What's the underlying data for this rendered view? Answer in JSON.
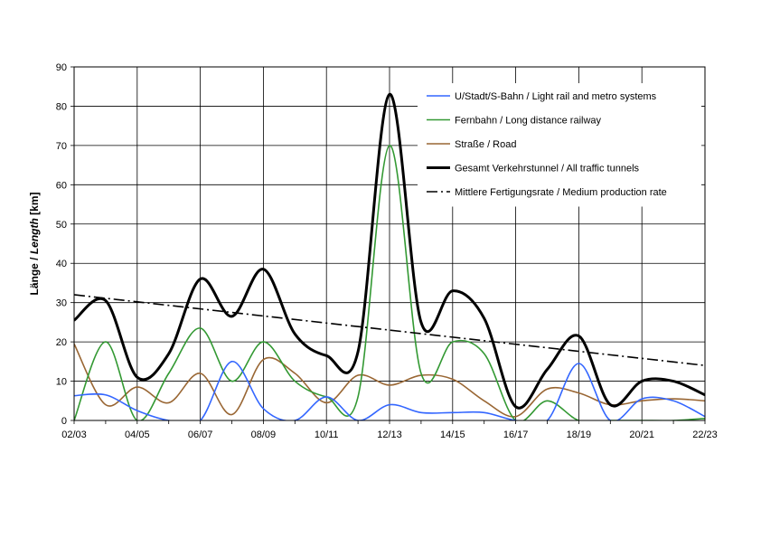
{
  "chart_data": {
    "type": "line",
    "ylabel": "Länge / Length [km]",
    "ylabel_parts": [
      "Länge / ",
      "Length",
      " [km]"
    ],
    "xlabel": "",
    "ylim": [
      0,
      90
    ],
    "y_ticks": [
      0,
      10,
      20,
      30,
      40,
      50,
      60,
      70,
      80,
      90
    ],
    "x": [
      "02/03",
      "03/04",
      "04/05",
      "05/06",
      "06/07",
      "07/08",
      "08/09",
      "09/10",
      "10/11",
      "11/12",
      "12/13",
      "13/14",
      "14/15",
      "15/16",
      "16/17",
      "17/18",
      "18/19",
      "19/20",
      "20/21",
      "21/22",
      "22/23"
    ],
    "x_tick_labels": [
      "02/03",
      "04/05",
      "06/07",
      "08/09",
      "10/11",
      "12/13",
      "14/15",
      "16/17",
      "18/19",
      "20/21",
      "22/23"
    ],
    "grid": true,
    "legend_position": "top-right",
    "series": [
      {
        "name": "U/Stadt/S-Bahn / Light rail and metro systems",
        "color": "#3366ff",
        "width": 1.6,
        "dash": "",
        "values": [
          6.3,
          6.5,
          2.5,
          0,
          0,
          15,
          3,
          0,
          6,
          0,
          4,
          2,
          2,
          2,
          0,
          0,
          14.5,
          0,
          5.5,
          5,
          1
        ]
      },
      {
        "name": "Fernbahn / Long distance railway",
        "color": "#339933",
        "width": 1.6,
        "dash": "",
        "values": [
          0,
          20,
          0,
          12,
          23.5,
          10,
          20,
          10,
          6,
          6,
          70,
          12,
          20,
          17,
          0,
          5,
          0,
          0,
          0,
          0,
          0.5
        ]
      },
      {
        "name": "Straße / Road",
        "color": "#996633",
        "width": 1.6,
        "dash": "",
        "values": [
          19.5,
          4,
          8.5,
          4.5,
          12,
          1.5,
          15.5,
          12,
          4.5,
          11.5,
          9,
          11.5,
          10.5,
          5,
          1,
          8,
          7,
          4,
          5,
          5.5,
          5
        ]
      },
      {
        "name": "Gesamt Verkehrstunnel / All traffic tunnels",
        "color": "#000000",
        "width": 3,
        "dash": "",
        "values": [
          25.5,
          30.5,
          11,
          17,
          36,
          26.5,
          38.5,
          22,
          16.5,
          17.5,
          83,
          25,
          33,
          26,
          3.5,
          13,
          21.5,
          4,
          10,
          10,
          6.5
        ]
      },
      {
        "name": "Mittlere Fertigungsrate / Medium production rate",
        "color": "#000000",
        "width": 1.6,
        "dash": "12,4,2,4",
        "values": [
          32,
          31.1,
          30.2,
          29.3,
          28.4,
          27.5,
          26.6,
          25.7,
          24.8,
          23.9,
          23.0,
          22.1,
          21.2,
          20.3,
          19.4,
          18.5,
          17.6,
          16.7,
          15.8,
          14.9,
          14.0
        ]
      }
    ]
  }
}
